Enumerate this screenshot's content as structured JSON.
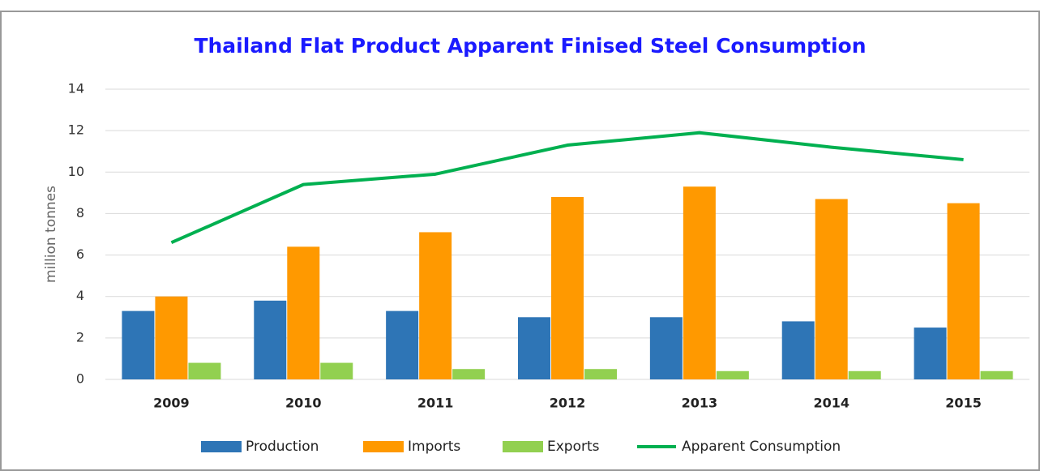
{
  "chart_data": {
    "type": "bar",
    "title": "Thailand Flat Product Apparent Finised Steel Consumption",
    "y_label": "million tonnes",
    "categories": [
      "2009",
      "2010",
      "2011",
      "2012",
      "2013",
      "2014",
      "2015"
    ],
    "series": [
      {
        "name": "Production",
        "color": "#2e75b6",
        "type": "bar",
        "values": [
          3.3,
          3.8,
          3.3,
          3.0,
          3.0,
          2.8,
          2.5
        ]
      },
      {
        "name": "Imports",
        "color": "#ff9900",
        "type": "bar",
        "values": [
          4.0,
          6.4,
          7.1,
          8.8,
          9.3,
          8.7,
          8.5
        ]
      },
      {
        "name": "Exports",
        "color": "#92d050",
        "type": "bar",
        "values": [
          0.8,
          0.8,
          0.5,
          0.5,
          0.4,
          0.4,
          0.4
        ]
      },
      {
        "name": "Apparent Consumption",
        "color": "#00b050",
        "type": "line",
        "values": [
          6.6,
          9.4,
          9.9,
          11.3,
          11.9,
          11.2,
          10.6
        ]
      }
    ],
    "ylim": [
      0,
      14
    ],
    "yticks": [
      0,
      2,
      4,
      6,
      8,
      10,
      12,
      14
    ],
    "grid": true,
    "legend": "bottom"
  }
}
